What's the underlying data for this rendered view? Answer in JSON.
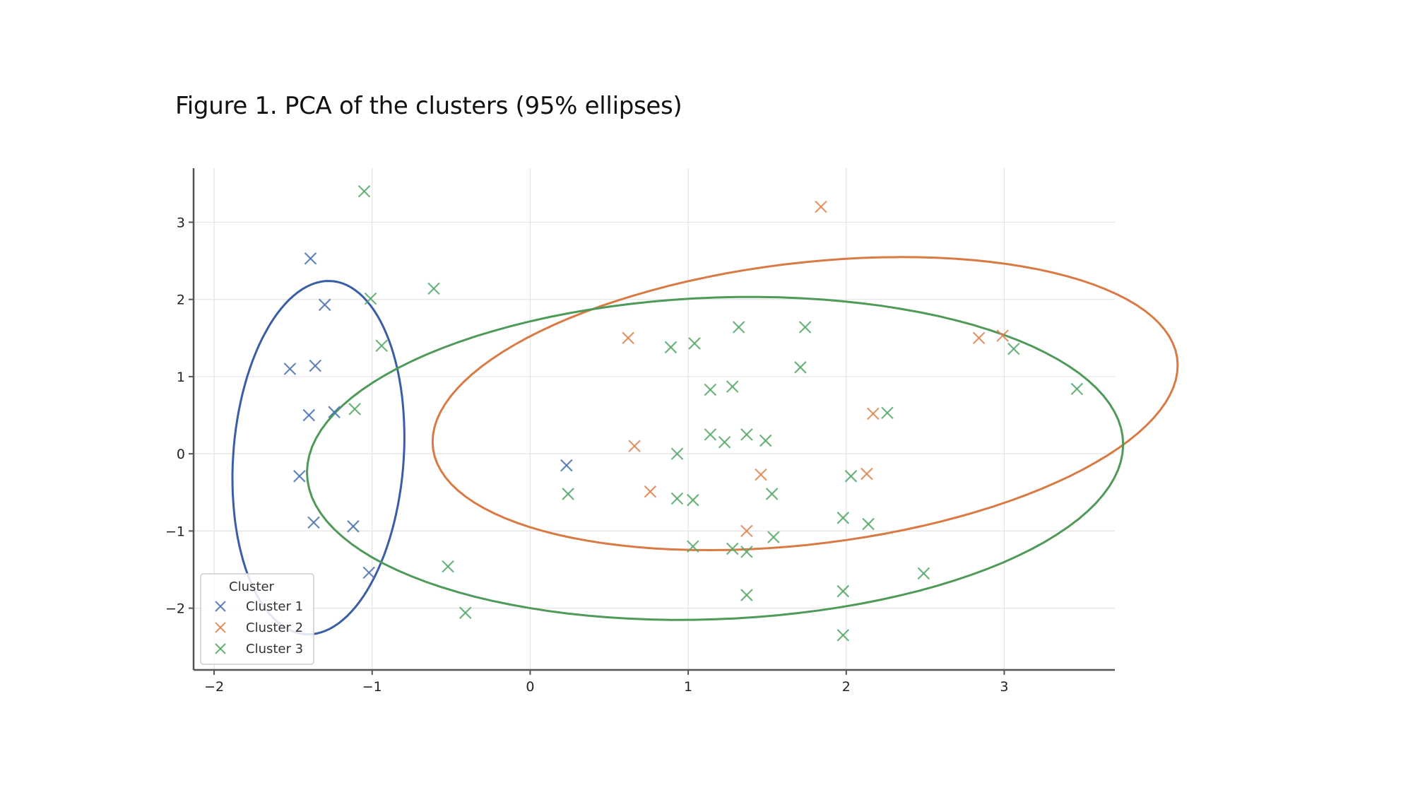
{
  "figure": {
    "title": "Figure 1. PCA of the clusters (95% ellipses)"
  },
  "chart_data": {
    "type": "scatter",
    "title": "",
    "xlabel": "",
    "ylabel": "",
    "xlim": [
      -2.13,
      3.7
    ],
    "ylim": [
      -2.8,
      3.7
    ],
    "xticks": [
      -2,
      -1,
      0,
      1,
      2,
      3
    ],
    "yticks": [
      -2,
      -1,
      0,
      1,
      2,
      3
    ],
    "xtick_labels": [
      "−2",
      "−1",
      "0",
      "1",
      "2",
      "3"
    ],
    "ytick_labels": [
      "−2",
      "−1",
      "0",
      "1",
      "2",
      "3"
    ],
    "grid": true,
    "marker": "x",
    "legend": {
      "title": "Cluster",
      "placement": "lower-left",
      "entries": [
        "Cluster 1",
        "Cluster 2",
        "Cluster 3"
      ]
    },
    "series": [
      {
        "name": "Cluster 1",
        "color": "#4c72b0",
        "points": [
          [
            -1.39,
            2.53
          ],
          [
            -1.3,
            1.93
          ],
          [
            -1.52,
            1.1
          ],
          [
            -1.36,
            1.14
          ],
          [
            -1.4,
            0.5
          ],
          [
            -1.24,
            0.54
          ],
          [
            -1.46,
            -0.29
          ],
          [
            -1.37,
            -0.89
          ],
          [
            -1.12,
            -0.94
          ],
          [
            -1.02,
            -1.54
          ],
          [
            0.23,
            -0.15
          ]
        ]
      },
      {
        "name": "Cluster 2",
        "color": "#dd8452",
        "points": [
          [
            1.84,
            3.2
          ],
          [
            0.62,
            1.5
          ],
          [
            0.66,
            0.1
          ],
          [
            0.76,
            -0.49
          ],
          [
            1.46,
            -0.27
          ],
          [
            1.37,
            -1.0
          ],
          [
            2.13,
            -0.26
          ],
          [
            2.17,
            0.52
          ],
          [
            2.84,
            1.5
          ],
          [
            2.99,
            1.53
          ]
        ]
      },
      {
        "name": "Cluster 3",
        "color": "#55a868",
        "points": [
          [
            -1.05,
            3.4
          ],
          [
            -1.01,
            2.01
          ],
          [
            -0.61,
            2.14
          ],
          [
            -0.94,
            1.4
          ],
          [
            -1.11,
            0.58
          ],
          [
            -0.52,
            -1.46
          ],
          [
            -0.41,
            -2.06
          ],
          [
            0.24,
            -0.52
          ],
          [
            0.89,
            1.38
          ],
          [
            1.04,
            1.43
          ],
          [
            1.32,
            1.64
          ],
          [
            1.74,
            1.64
          ],
          [
            1.71,
            1.12
          ],
          [
            1.14,
            0.83
          ],
          [
            1.28,
            0.87
          ],
          [
            1.14,
            0.25
          ],
          [
            1.23,
            0.15
          ],
          [
            1.37,
            0.25
          ],
          [
            1.49,
            0.17
          ],
          [
            0.93,
            0.0
          ],
          [
            0.93,
            -0.58
          ],
          [
            1.03,
            -0.6
          ],
          [
            1.53,
            -0.52
          ],
          [
            2.03,
            -0.29
          ],
          [
            1.98,
            -0.83
          ],
          [
            2.14,
            -0.91
          ],
          [
            1.03,
            -1.2
          ],
          [
            1.28,
            -1.23
          ],
          [
            1.37,
            -1.27
          ],
          [
            1.54,
            -1.08
          ],
          [
            1.37,
            -1.83
          ],
          [
            1.98,
            -1.78
          ],
          [
            1.98,
            -2.35
          ],
          [
            2.49,
            -1.55
          ],
          [
            2.26,
            0.53
          ],
          [
            3.06,
            1.36
          ],
          [
            3.46,
            0.84
          ]
        ]
      }
    ],
    "ellipses": [
      {
        "series": "Cluster 1",
        "color": "#3a5ea6",
        "cx": -1.34,
        "cy": -0.05,
        "rx": 0.54,
        "ry": 2.29,
        "angle_deg": -1.7
      },
      {
        "series": "Cluster 2",
        "color": "#d97a45",
        "cx": 1.74,
        "cy": 0.65,
        "rx": 1.75,
        "ry": 2.47,
        "angle_deg": -65.0
      },
      {
        "series": "Cluster 3",
        "color": "#4f9a58",
        "cx": 1.17,
        "cy": -0.06,
        "rx": 2.07,
        "ry": 2.6,
        "angle_deg": -78.9
      }
    ]
  }
}
